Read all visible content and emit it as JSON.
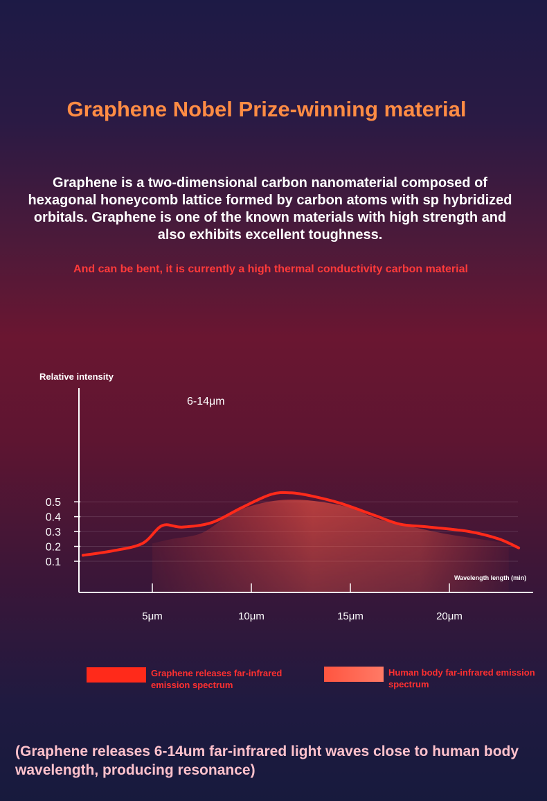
{
  "header": {
    "title": "Graphene Nobel Prize-winning material",
    "intro": "Graphene is a two-dimensional carbon nanomaterial composed of hexagonal honeycomb lattice formed by carbon atoms with sp hybridized orbitals. Graphene is one of the known materials with high strength and also exhibits excellent toughness.",
    "note": "And can be bent, it is currently a high thermal conductivity carbon material"
  },
  "chart_data": {
    "type": "line",
    "ylabel": "Relative intensity",
    "xlabel": "Wavelength length (min)",
    "annotation": "6-14μm",
    "y_ticks": [
      {
        "value": 0.5,
        "label": "0.5"
      },
      {
        "value": 0.4,
        "label": "0.4"
      },
      {
        "value": 0.3,
        "label": "0.3"
      },
      {
        "value": 0.2,
        "label": "0.2"
      },
      {
        "value": 0.1,
        "label": "0.1"
      }
    ],
    "x_ticks": [
      {
        "value": 5,
        "label": "5μm"
      },
      {
        "value": 10,
        "label": "10μm"
      },
      {
        "value": 15,
        "label": "15μm"
      },
      {
        "value": 20,
        "label": "20μm"
      }
    ],
    "grid": true,
    "series": [
      {
        "name": "Graphene releases far-infrared emission spectrum",
        "style": "line",
        "color": "#ff2a1a",
        "points": [
          [
            1.5,
            0.14
          ],
          [
            3,
            0.17
          ],
          [
            4.5,
            0.22
          ],
          [
            5.5,
            0.34
          ],
          [
            6.5,
            0.33
          ],
          [
            8,
            0.36
          ],
          [
            9.5,
            0.46
          ],
          [
            11,
            0.55
          ],
          [
            12,
            0.56
          ],
          [
            13,
            0.54
          ],
          [
            14.5,
            0.49
          ],
          [
            16.2,
            0.41
          ],
          [
            17.5,
            0.35
          ],
          [
            19,
            0.33
          ],
          [
            21,
            0.3
          ],
          [
            22.5,
            0.25
          ],
          [
            23.5,
            0.19
          ]
        ]
      },
      {
        "name": "Human body far-infrared emission spectrum",
        "style": "area",
        "color": "#ff5540",
        "points": [
          [
            5,
            0.22
          ],
          [
            6,
            0.25
          ],
          [
            7.5,
            0.29
          ],
          [
            9,
            0.42
          ],
          [
            10.5,
            0.49
          ],
          [
            12,
            0.515
          ],
          [
            13.5,
            0.5
          ],
          [
            15,
            0.46
          ],
          [
            16.5,
            0.38
          ],
          [
            18.5,
            0.32
          ],
          [
            20,
            0.28
          ],
          [
            22,
            0.24
          ],
          [
            23,
            0.22
          ]
        ]
      }
    ]
  },
  "footer": {
    "text": "(Graphene releases 6-14um far-infrared light waves close to human body wavelength, producing resonance)"
  }
}
